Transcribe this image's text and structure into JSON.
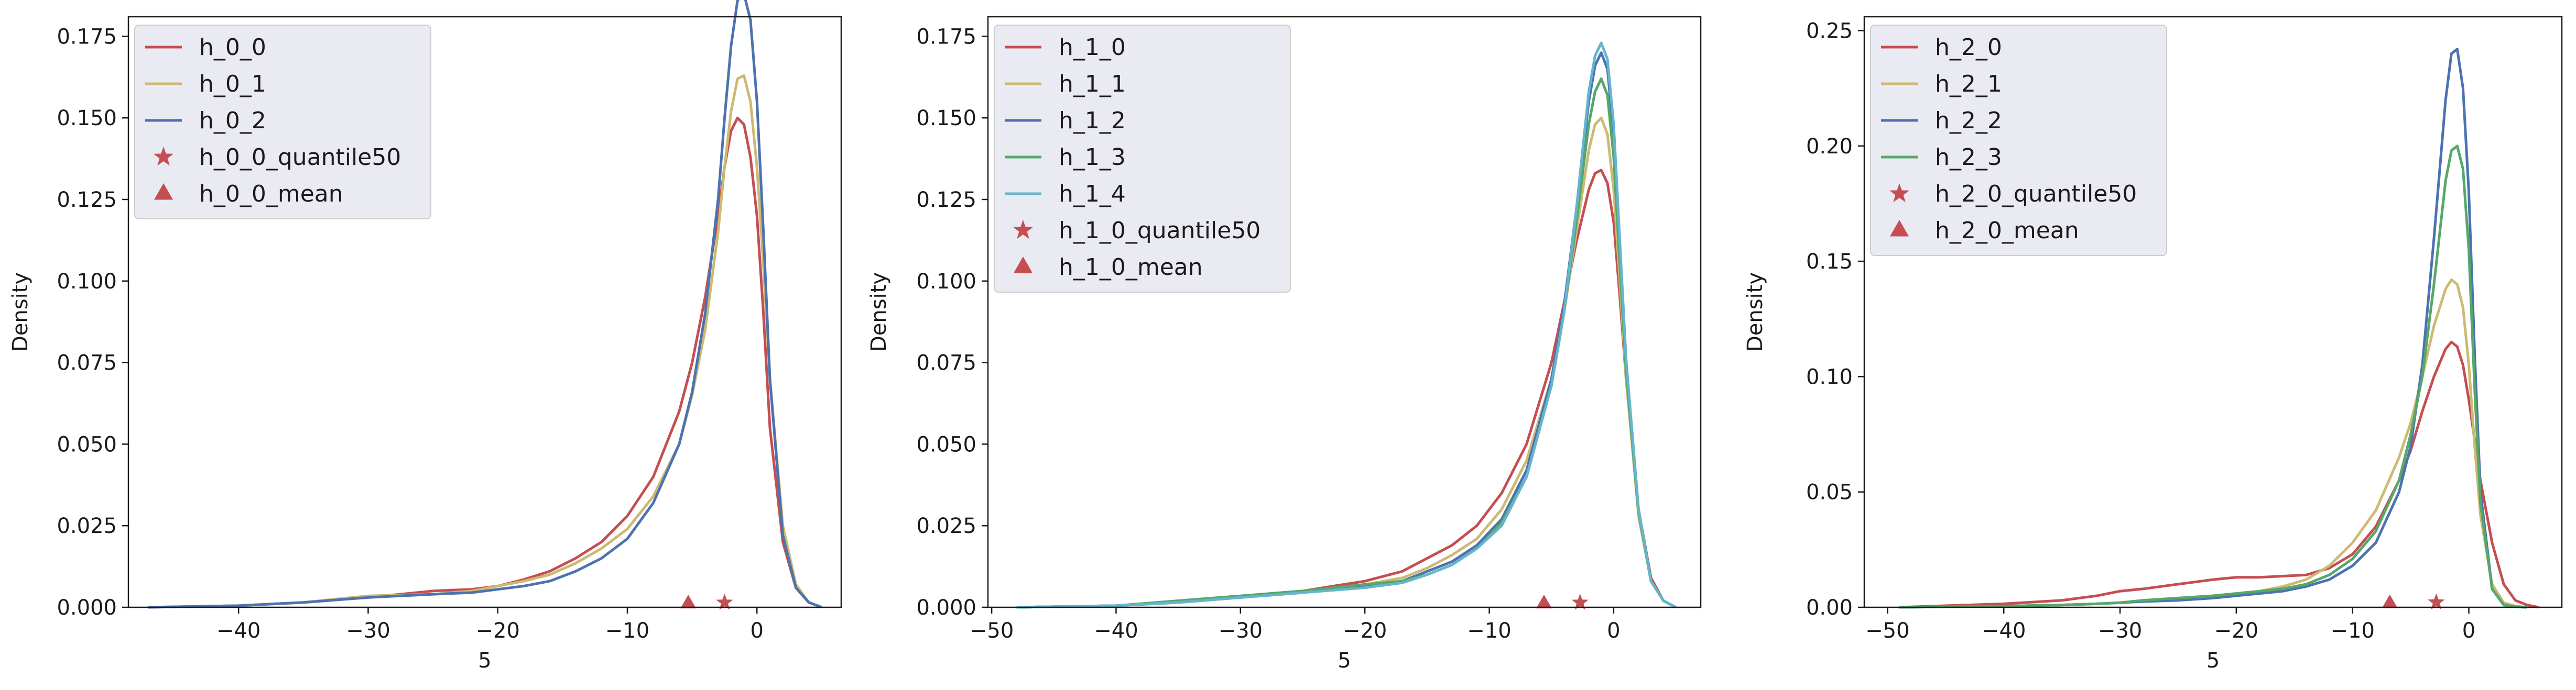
{
  "colors": {
    "red": "#c44e52",
    "gold": "#ccb974",
    "blue": "#4c72b0",
    "green": "#55a868",
    "cyan": "#64b5cd",
    "legend_bg": "#eaeaf2"
  },
  "chart_data": [
    {
      "type": "line",
      "title": "",
      "xlabel": "5",
      "ylabel": "Density",
      "xlim": [
        -48.5,
        6.5
      ],
      "ylim": [
        0,
        0.181
      ],
      "xticks": [
        -40,
        -30,
        -20,
        -10,
        0
      ],
      "xtick_labels": [
        "−40",
        "−30",
        "−20",
        "−10",
        "0"
      ],
      "yticks": [
        0,
        0.025,
        0.05,
        0.075,
        0.1,
        0.125,
        0.15,
        0.175
      ],
      "ytick_labels": [
        "0.000",
        "0.025",
        "0.050",
        "0.075",
        "0.100",
        "0.125",
        "0.150",
        "0.175"
      ],
      "grid": false,
      "legend_position": "upper-left",
      "series": [
        {
          "name": "h_0_0",
          "color": "#c44e52",
          "x": [
            -47,
            -40,
            -35,
            -30,
            -25,
            -22,
            -20,
            -18,
            -16,
            -14,
            -12,
            -10,
            -8,
            -6,
            -5,
            -4,
            -3,
            -2.5,
            -2,
            -1.5,
            -1,
            -0.5,
            0,
            0.5,
            1,
            2,
            3,
            4,
            5
          ],
          "y": [
            0,
            0.0005,
            0.0015,
            0.003,
            0.005,
            0.0055,
            0.0065,
            0.0085,
            0.011,
            0.015,
            0.02,
            0.028,
            0.04,
            0.06,
            0.075,
            0.095,
            0.12,
            0.135,
            0.146,
            0.15,
            0.148,
            0.138,
            0.12,
            0.09,
            0.055,
            0.02,
            0.006,
            0.0015,
            0
          ]
        },
        {
          "name": "h_0_1",
          "color": "#ccb974",
          "x": [
            -47,
            -40,
            -35,
            -30,
            -25,
            -22,
            -20,
            -18,
            -16,
            -14,
            -12,
            -10,
            -8,
            -6,
            -5,
            -4,
            -3,
            -2.5,
            -2,
            -1.5,
            -1,
            -0.5,
            0,
            0.5,
            1,
            2,
            3,
            4,
            5
          ],
          "y": [
            0,
            0.0005,
            0.0015,
            0.0035,
            0.004,
            0.005,
            0.0065,
            0.008,
            0.01,
            0.0135,
            0.018,
            0.024,
            0.034,
            0.05,
            0.065,
            0.085,
            0.115,
            0.135,
            0.152,
            0.162,
            0.163,
            0.155,
            0.135,
            0.105,
            0.07,
            0.025,
            0.007,
            0.0015,
            0
          ]
        },
        {
          "name": "h_0_2",
          "color": "#4c72b0",
          "x": [
            -47,
            -40,
            -35,
            -30,
            -25,
            -22,
            -20,
            -18,
            -16,
            -14,
            -12,
            -10,
            -8,
            -6,
            -5,
            -4,
            -3,
            -2.5,
            -2,
            -1.5,
            -1,
            -0.5,
            0,
            0.5,
            1,
            2,
            3,
            4,
            5
          ],
          "y": [
            0,
            0.0005,
            0.0015,
            0.003,
            0.004,
            0.0045,
            0.0055,
            0.0065,
            0.008,
            0.011,
            0.015,
            0.021,
            0.032,
            0.05,
            0.066,
            0.09,
            0.125,
            0.15,
            0.172,
            0.186,
            0.188,
            0.18,
            0.155,
            0.115,
            0.07,
            0.022,
            0.006,
            0.0015,
            0
          ]
        }
      ],
      "markers": [
        {
          "name": "h_0_0_quantile50",
          "shape": "star",
          "color": "#c44e52",
          "x": -2.5,
          "y": 0.0005
        },
        {
          "name": "h_0_0_mean",
          "shape": "triangle",
          "color": "#c44e52",
          "x": -5.3,
          "y": 0.0005
        }
      ]
    },
    {
      "type": "line",
      "title": "",
      "xlabel": "5",
      "ylabel": "Density",
      "xlim": [
        -50.3,
        7
      ],
      "ylim": [
        0,
        0.181
      ],
      "xticks": [
        -50,
        -40,
        -30,
        -20,
        -10,
        0
      ],
      "xtick_labels": [
        "−50",
        "−40",
        "−30",
        "−20",
        "−10",
        "0"
      ],
      "yticks": [
        0,
        0.025,
        0.05,
        0.075,
        0.1,
        0.125,
        0.15,
        0.175
      ],
      "ytick_labels": [
        "0.000",
        "0.025",
        "0.050",
        "0.075",
        "0.100",
        "0.125",
        "0.150",
        "0.175"
      ],
      "grid": false,
      "legend_position": "upper-left",
      "series": [
        {
          "name": "h_1_0",
          "color": "#c44e52",
          "x": [
            -48,
            -40,
            -35,
            -30,
            -25,
            -20,
            -17,
            -15,
            -13,
            -11,
            -9,
            -7,
            -5,
            -4,
            -3,
            -2,
            -1.5,
            -1,
            -0.5,
            0,
            0.5,
            1,
            2,
            3,
            4,
            5
          ],
          "y": [
            0,
            0.0005,
            0.0015,
            0.003,
            0.005,
            0.008,
            0.011,
            0.015,
            0.019,
            0.025,
            0.035,
            0.05,
            0.075,
            0.093,
            0.112,
            0.128,
            0.133,
            0.134,
            0.13,
            0.118,
            0.095,
            0.07,
            0.03,
            0.009,
            0.002,
            0
          ]
        },
        {
          "name": "h_1_1",
          "color": "#ccb974",
          "x": [
            -48,
            -40,
            -35,
            -30,
            -25,
            -20,
            -17,
            -15,
            -13,
            -11,
            -9,
            -7,
            -5,
            -4,
            -3,
            -2,
            -1.5,
            -1,
            -0.5,
            0,
            0.5,
            1,
            2,
            3,
            4,
            5
          ],
          "y": [
            0,
            0.0005,
            0.0015,
            0.003,
            0.005,
            0.007,
            0.009,
            0.012,
            0.016,
            0.021,
            0.03,
            0.045,
            0.07,
            0.09,
            0.115,
            0.14,
            0.148,
            0.15,
            0.145,
            0.128,
            0.1,
            0.07,
            0.028,
            0.008,
            0.002,
            0
          ]
        },
        {
          "name": "h_1_2",
          "color": "#4c72b0",
          "x": [
            -48,
            -40,
            -35,
            -30,
            -25,
            -20,
            -17,
            -15,
            -13,
            -11,
            -9,
            -7,
            -5,
            -4,
            -3,
            -2,
            -1.5,
            -1,
            -0.5,
            0,
            0.5,
            1,
            2,
            3,
            4,
            5
          ],
          "y": [
            0,
            0.0005,
            0.0015,
            0.003,
            0.0045,
            0.0065,
            0.008,
            0.011,
            0.014,
            0.019,
            0.027,
            0.042,
            0.07,
            0.092,
            0.122,
            0.155,
            0.166,
            0.17,
            0.165,
            0.145,
            0.11,
            0.075,
            0.03,
            0.008,
            0.002,
            0
          ]
        },
        {
          "name": "h_1_3",
          "color": "#55a868",
          "x": [
            -48,
            -40,
            -35,
            -30,
            -25,
            -20,
            -17,
            -15,
            -13,
            -11,
            -9,
            -7,
            -5,
            -4,
            -3,
            -2,
            -1.5,
            -1,
            -0.5,
            0,
            0.5,
            1,
            2,
            3,
            4,
            5
          ],
          "y": [
            0,
            0.0005,
            0.002,
            0.0035,
            0.005,
            0.007,
            0.008,
            0.01,
            0.013,
            0.018,
            0.026,
            0.04,
            0.068,
            0.09,
            0.118,
            0.148,
            0.158,
            0.162,
            0.157,
            0.138,
            0.105,
            0.072,
            0.029,
            0.008,
            0.002,
            0
          ]
        },
        {
          "name": "h_1_4",
          "color": "#64b5cd",
          "x": [
            -48,
            -40,
            -35,
            -30,
            -25,
            -20,
            -17,
            -15,
            -13,
            -11,
            -9,
            -7,
            -5,
            -4,
            -3,
            -2,
            -1.5,
            -1,
            -0.5,
            0,
            0.5,
            1,
            2,
            3,
            4,
            5
          ],
          "y": [
            0,
            0.0005,
            0.0015,
            0.003,
            0.0045,
            0.006,
            0.0075,
            0.01,
            0.013,
            0.018,
            0.025,
            0.04,
            0.068,
            0.09,
            0.122,
            0.158,
            0.169,
            0.173,
            0.168,
            0.148,
            0.112,
            0.076,
            0.03,
            0.008,
            0.002,
            0
          ]
        }
      ],
      "markers": [
        {
          "name": "h_1_0_quantile50",
          "shape": "star",
          "color": "#c44e52",
          "x": -2.7,
          "y": 0.0005
        },
        {
          "name": "h_1_0_mean",
          "shape": "triangle",
          "color": "#c44e52",
          "x": -5.6,
          "y": 0.0005
        }
      ]
    },
    {
      "type": "line",
      "title": "",
      "xlabel": "5",
      "ylabel": "Density",
      "xlim": [
        -52,
        8
      ],
      "ylim": [
        0,
        0.256
      ],
      "xticks": [
        -50,
        -40,
        -30,
        -20,
        -10,
        0
      ],
      "xtick_labels": [
        "−50",
        "−40",
        "−30",
        "−20",
        "−10",
        "0"
      ],
      "yticks": [
        0,
        0.05,
        0.1,
        0.15,
        0.2,
        0.25
      ],
      "ytick_labels": [
        "0.00",
        "0.05",
        "0.10",
        "0.15",
        "0.20",
        "0.25"
      ],
      "grid": false,
      "legend_position": "upper-left",
      "series": [
        {
          "name": "h_2_0",
          "color": "#c44e52",
          "x": [
            -49,
            -40,
            -35,
            -32,
            -30,
            -28,
            -25,
            -22,
            -20,
            -18,
            -16,
            -14,
            -12,
            -10,
            -8,
            -6,
            -5,
            -4,
            -3,
            -2,
            -1.5,
            -1,
            -0.5,
            0,
            1,
            2,
            3,
            4,
            5,
            6
          ],
          "y": [
            0,
            0.0015,
            0.003,
            0.005,
            0.007,
            0.008,
            0.01,
            0.012,
            0.013,
            0.013,
            0.0135,
            0.014,
            0.017,
            0.023,
            0.035,
            0.055,
            0.068,
            0.085,
            0.1,
            0.112,
            0.115,
            0.113,
            0.105,
            0.09,
            0.055,
            0.028,
            0.01,
            0.003,
            0.001,
            0
          ]
        },
        {
          "name": "h_2_1",
          "color": "#ccb974",
          "x": [
            -49,
            -40,
            -35,
            -32,
            -30,
            -28,
            -25,
            -22,
            -20,
            -18,
            -16,
            -14,
            -12,
            -10,
            -8,
            -6,
            -5,
            -4,
            -3,
            -2,
            -1.5,
            -1,
            -0.5,
            0,
            0.5,
            1,
            2,
            3,
            4,
            5
          ],
          "y": [
            0,
            0.0005,
            0.001,
            0.0015,
            0.002,
            0.003,
            0.004,
            0.005,
            0.006,
            0.007,
            0.009,
            0.012,
            0.018,
            0.028,
            0.042,
            0.065,
            0.08,
            0.1,
            0.122,
            0.138,
            0.142,
            0.14,
            0.13,
            0.105,
            0.07,
            0.04,
            0.01,
            0.002,
            0.0005,
            0
          ]
        },
        {
          "name": "h_2_2",
          "color": "#4c72b0",
          "x": [
            -49,
            -40,
            -35,
            -32,
            -30,
            -28,
            -25,
            -22,
            -20,
            -18,
            -16,
            -14,
            -12,
            -10,
            -8,
            -6,
            -5,
            -4,
            -3,
            -2,
            -1.5,
            -1,
            -0.5,
            0,
            0.5,
            1,
            2,
            3,
            4,
            5
          ],
          "y": [
            0,
            0.0005,
            0.001,
            0.0015,
            0.002,
            0.0025,
            0.003,
            0.004,
            0.005,
            0.006,
            0.007,
            0.009,
            0.012,
            0.018,
            0.028,
            0.05,
            0.07,
            0.105,
            0.16,
            0.22,
            0.24,
            0.242,
            0.225,
            0.18,
            0.11,
            0.05,
            0.008,
            0.001,
            0.0002,
            0
          ]
        },
        {
          "name": "h_2_3",
          "color": "#55a868",
          "x": [
            -49,
            -40,
            -35,
            -32,
            -30,
            -28,
            -25,
            -22,
            -20,
            -18,
            -16,
            -14,
            -12,
            -10,
            -8,
            -6,
            -5,
            -4,
            -3,
            -2,
            -1.5,
            -1,
            -0.5,
            0,
            0.5,
            1,
            2,
            3,
            4,
            5
          ],
          "y": [
            0,
            0.0005,
            0.001,
            0.0015,
            0.002,
            0.003,
            0.004,
            0.005,
            0.006,
            0.007,
            0.008,
            0.01,
            0.014,
            0.021,
            0.033,
            0.055,
            0.075,
            0.1,
            0.14,
            0.185,
            0.198,
            0.2,
            0.19,
            0.155,
            0.095,
            0.045,
            0.008,
            0.001,
            0.0002,
            0
          ]
        }
      ],
      "markers": [
        {
          "name": "h_2_0_quantile50",
          "shape": "star",
          "color": "#c44e52",
          "x": -2.8,
          "y": 0.0008
        },
        {
          "name": "h_2_0_mean",
          "shape": "triangle",
          "color": "#c44e52",
          "x": -6.8,
          "y": 0.0008
        }
      ]
    }
  ]
}
